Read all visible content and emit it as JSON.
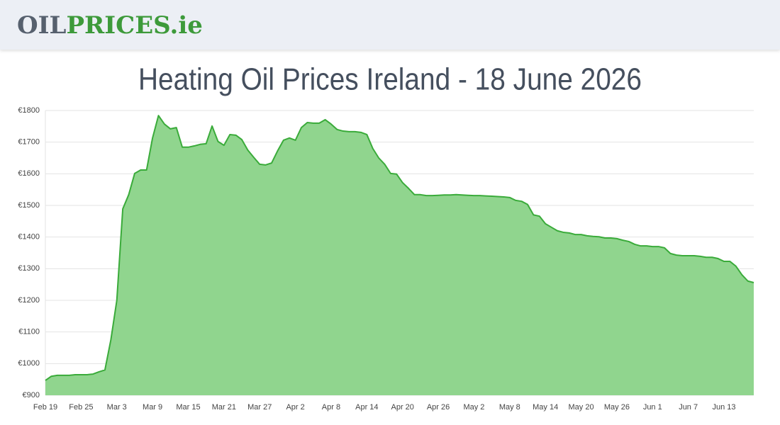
{
  "header": {
    "logo": [
      "OIL",
      "PRICES.ie"
    ]
  },
  "chart_data": {
    "type": "area",
    "title": "Heating Oil Prices Ireland - 18 June 2026",
    "categories": [
      "Feb 19",
      null,
      null,
      null,
      null,
      null,
      "Feb 25",
      null,
      null,
      null,
      null,
      null,
      "Mar 3",
      null,
      null,
      null,
      null,
      null,
      "Mar 9",
      null,
      null,
      null,
      null,
      null,
      "Mar 15",
      null,
      null,
      null,
      null,
      null,
      "Mar 21",
      null,
      null,
      null,
      null,
      null,
      "Mar 27",
      null,
      null,
      null,
      null,
      null,
      "Apr 2",
      null,
      null,
      null,
      null,
      null,
      "Apr 8",
      null,
      null,
      null,
      null,
      null,
      "Apr 14",
      null,
      null,
      null,
      null,
      null,
      "Apr 20",
      null,
      null,
      null,
      null,
      null,
      "Apr 26",
      null,
      null,
      null,
      null,
      null,
      "May 2",
      null,
      null,
      null,
      null,
      null,
      "May 8",
      null,
      null,
      null,
      null,
      null,
      "May 14",
      null,
      null,
      null,
      null,
      null,
      "May 20",
      null,
      null,
      null,
      null,
      null,
      "May 26",
      null,
      null,
      null,
      null,
      null,
      "Jun 1",
      null,
      null,
      null,
      null,
      null,
      "Jun 7",
      null,
      null,
      null,
      null,
      null,
      "Jun 13",
      null,
      null,
      null,
      null,
      null
    ],
    "values": [
      947,
      960,
      963,
      963,
      963,
      965,
      965,
      965,
      967,
      974,
      980,
      1075,
      1200,
      1489,
      1534,
      1601,
      1612,
      1612,
      1713,
      1784,
      1757,
      1742,
      1746,
      1684,
      1684,
      1688,
      1693,
      1695,
      1751,
      1702,
      1690,
      1724,
      1722,
      1708,
      1675,
      1652,
      1630,
      1628,
      1634,
      1672,
      1706,
      1713,
      1706,
      1746,
      1762,
      1760,
      1760,
      1771,
      1757,
      1740,
      1735,
      1733,
      1733,
      1731,
      1724,
      1680,
      1650,
      1630,
      1601,
      1599,
      1572,
      1554,
      1534,
      1534,
      1531,
      1531,
      1532,
      1533,
      1533,
      1534,
      1533,
      1532,
      1531,
      1531,
      1530,
      1529,
      1528,
      1527,
      1525,
      1516,
      1513,
      1503,
      1470,
      1466,
      1442,
      1431,
      1420,
      1415,
      1413,
      1408,
      1408,
      1404,
      1402,
      1401,
      1397,
      1397,
      1395,
      1390,
      1386,
      1377,
      1372,
      1372,
      1370,
      1370,
      1366,
      1348,
      1343,
      1341,
      1341,
      1341,
      1339,
      1336,
      1336,
      1332,
      1323,
      1323,
      1308,
      1281,
      1261,
      1256
    ],
    "color": "#3aab3a",
    "fill_color": "#90d58e",
    "ylim": [
      900,
      1800
    ],
    "yticks": [
      {
        "value": 900,
        "label": "€900"
      },
      {
        "value": 1000,
        "label": "€1000"
      },
      {
        "value": 1100,
        "label": "€1100"
      },
      {
        "value": 1200,
        "label": "€1200"
      },
      {
        "value": 1300,
        "label": "€1300"
      },
      {
        "value": 1400,
        "label": "€1400"
      },
      {
        "value": 1500,
        "label": "€1500"
      },
      {
        "value": 1600,
        "label": "€1600"
      },
      {
        "value": 1700,
        "label": "€1700"
      },
      {
        "value": 1800,
        "label": "€1800"
      }
    ],
    "grid": true
  }
}
